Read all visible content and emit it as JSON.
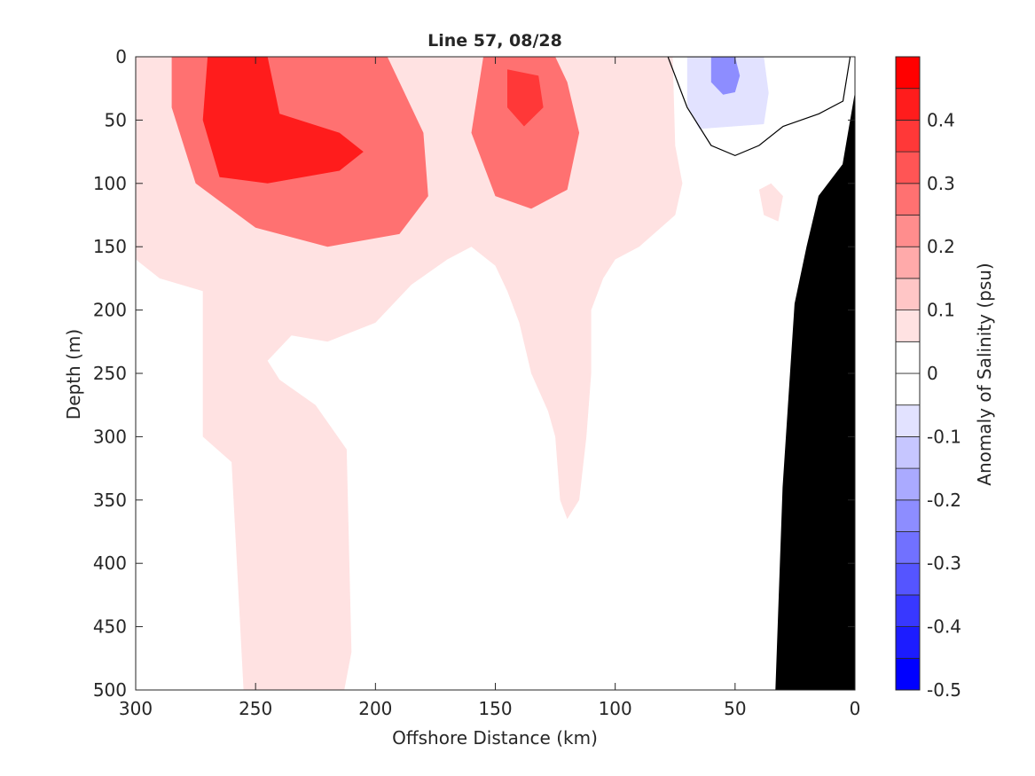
{
  "chart_data": {
    "type": "contour",
    "title": "Line 57, 08/28",
    "xlabel": "Offshore Distance (km)",
    "ylabel": "Depth (m)",
    "xlim": [
      300,
      0
    ],
    "ylim": [
      0,
      500
    ],
    "x_reversed": true,
    "y_reversed": true,
    "xticks": [
      300,
      250,
      200,
      150,
      100,
      50,
      0
    ],
    "yticks": [
      0,
      50,
      100,
      150,
      200,
      250,
      300,
      350,
      400,
      450,
      500
    ],
    "grid": false,
    "colorbar": {
      "label": "Anomaly of Salinity (psu)",
      "range": [
        -0.5,
        0.5
      ],
      "step": 0.05,
      "ticks": [
        0.4,
        0.3,
        0.2,
        0.1,
        0,
        -0.1,
        -0.2,
        -0.3,
        -0.4,
        -0.5
      ],
      "colors": [
        "#0000ff",
        "#1c1cff",
        "#3838ff",
        "#5555ff",
        "#7171ff",
        "#8d8dff",
        "#aaaaff",
        "#c6c6ff",
        "#e2e2ff",
        "#ffffff",
        "#ffffff",
        "#ffe2e2",
        "#ffc6c6",
        "#ffaaaa",
        "#ff8d8d",
        "#ff7171",
        "#ff5555",
        "#ff3838",
        "#ff1c1c",
        "#ff0000"
      ]
    },
    "features": [
      {
        "name": "positive-anomaly-envelope",
        "level": 0.05,
        "outline": [
          [
            300,
            0
          ],
          [
            300,
            160
          ],
          [
            290,
            175
          ],
          [
            272,
            185
          ],
          [
            272,
            300
          ],
          [
            260,
            320
          ],
          [
            255,
            500
          ],
          [
            213,
            500
          ],
          [
            210,
            470
          ],
          [
            212,
            310
          ],
          [
            225,
            275
          ],
          [
            240,
            255
          ],
          [
            245,
            240
          ],
          [
            235,
            220
          ],
          [
            220,
            225
          ],
          [
            200,
            210
          ],
          [
            185,
            180
          ],
          [
            170,
            160
          ],
          [
            160,
            150
          ],
          [
            150,
            165
          ],
          [
            145,
            185
          ],
          [
            140,
            210
          ],
          [
            135,
            250
          ],
          [
            128,
            280
          ],
          [
            125,
            300
          ],
          [
            123,
            350
          ],
          [
            120,
            365
          ],
          [
            115,
            350
          ],
          [
            112,
            300
          ],
          [
            110,
            250
          ],
          [
            110,
            200
          ],
          [
            105,
            175
          ],
          [
            100,
            160
          ],
          [
            90,
            150
          ],
          [
            75,
            125
          ],
          [
            72,
            100
          ],
          [
            75,
            70
          ],
          [
            76,
            0
          ]
        ]
      },
      {
        "name": "offshore-lobe",
        "level": 0.25,
        "outline": [
          [
            285,
            0
          ],
          [
            285,
            40
          ],
          [
            275,
            100
          ],
          [
            250,
            135
          ],
          [
            220,
            150
          ],
          [
            190,
            140
          ],
          [
            178,
            110
          ],
          [
            180,
            60
          ],
          [
            190,
            20
          ],
          [
            195,
            0
          ]
        ]
      },
      {
        "name": "offshore-core",
        "level": 0.4,
        "outline": [
          [
            270,
            0
          ],
          [
            272,
            50
          ],
          [
            265,
            95
          ],
          [
            245,
            100
          ],
          [
            215,
            90
          ],
          [
            205,
            75
          ],
          [
            215,
            60
          ],
          [
            240,
            45
          ],
          [
            245,
            0
          ]
        ]
      },
      {
        "name": "mid-lobe",
        "level": 0.25,
        "outline": [
          [
            155,
            0
          ],
          [
            160,
            60
          ],
          [
            150,
            110
          ],
          [
            135,
            120
          ],
          [
            120,
            105
          ],
          [
            115,
            60
          ],
          [
            120,
            20
          ],
          [
            125,
            0
          ]
        ]
      },
      {
        "name": "mid-core",
        "level": 0.35,
        "outline": [
          [
            145,
            10
          ],
          [
            145,
            40
          ],
          [
            138,
            55
          ],
          [
            130,
            40
          ],
          [
            132,
            15
          ]
        ]
      },
      {
        "name": "coastal-negative-zero-contour",
        "level": -0.05,
        "outline": [
          [
            78,
            0
          ],
          [
            70,
            40
          ],
          [
            60,
            70
          ],
          [
            50,
            78
          ],
          [
            40,
            70
          ],
          [
            30,
            55
          ],
          [
            15,
            45
          ],
          [
            5,
            35
          ],
          [
            2,
            0
          ]
        ]
      },
      {
        "name": "coastal-negative-core",
        "level": -0.25,
        "outline": [
          [
            60,
            0
          ],
          [
            60,
            20
          ],
          [
            55,
            30
          ],
          [
            50,
            28
          ],
          [
            48,
            15
          ],
          [
            50,
            0
          ]
        ]
      },
      {
        "name": "small-positive-patch",
        "level": 0.05,
        "outline": [
          [
            40,
            105
          ],
          [
            38,
            125
          ],
          [
            32,
            130
          ],
          [
            30,
            110
          ],
          [
            35,
            100
          ]
        ]
      }
    ],
    "bathymetry": {
      "name": "shelf-slope",
      "outline": [
        [
          0,
          30
        ],
        [
          5,
          85
        ],
        [
          15,
          110
        ],
        [
          20,
          150
        ],
        [
          25,
          195
        ],
        [
          30,
          340
        ],
        [
          33,
          500
        ],
        [
          0,
          500
        ]
      ]
    }
  }
}
